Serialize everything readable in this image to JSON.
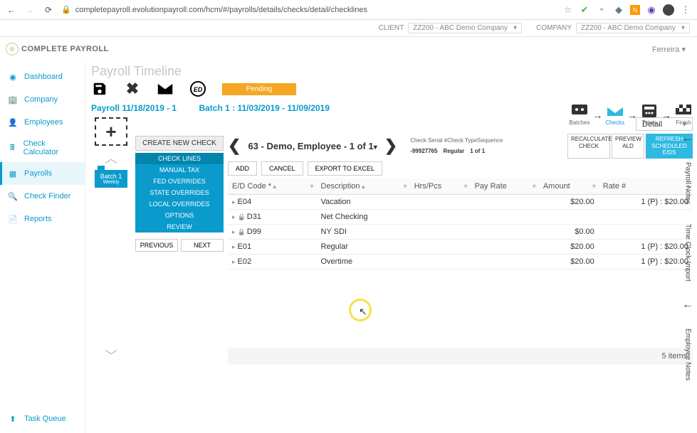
{
  "browser": {
    "url": "completepayroll.evolutionpayroll.com/hcm/#/payrolls/details/checks/detail/checklines",
    "ext_colors": [
      "#4caf50",
      "#9e9e9e",
      "#607d8b",
      "#ff9800",
      "#673ab7"
    ]
  },
  "client_bar": {
    "client_label": "CLIENT",
    "client_value": "ZZ200 - ABC Demo Company",
    "company_label": "COMPANY",
    "company_value": "ZZ200 - ABC Demo Company"
  },
  "logo_text": "COMPLETE PAYROLL",
  "user_name": "Ferreira",
  "sidebar": {
    "items": [
      {
        "label": "Dashboard",
        "icon": "gauge"
      },
      {
        "label": "Company",
        "icon": "building"
      },
      {
        "label": "Employees",
        "icon": "person"
      },
      {
        "label": "Check Calculator",
        "icon": "calc"
      },
      {
        "label": "Payrolls",
        "icon": "grid",
        "active": true
      },
      {
        "label": "Check Finder",
        "icon": "search"
      },
      {
        "label": "Reports",
        "icon": "doc"
      }
    ],
    "task_queue": "Task Queue"
  },
  "page": {
    "title": "Payroll Timeline",
    "pending": "Pending",
    "breadcrumb1": "Payroll 11/18/2019 - 1",
    "breadcrumb2": "Batch 1 : 11/03/2019 - 11/09/2019"
  },
  "workflow": [
    {
      "label": "Batches"
    },
    {
      "label": "Checks",
      "active": true
    },
    {
      "label": "Totals"
    },
    {
      "label": "Finish"
    }
  ],
  "batch": {
    "name": "Batch 1",
    "sub": "Weekly"
  },
  "check_nav": {
    "create": "CREATE NEW CHECK",
    "items": [
      "CHECK LINES",
      "MANUAL TAX",
      "FED OVERRIDES",
      "STATE OVERRIDES",
      "LOCAL OVERRIDES",
      "OPTIONS",
      "REVIEW"
    ],
    "active_index": 0,
    "prev": "PREVIOUS",
    "next": "NEXT"
  },
  "detail": {
    "view": "Detail",
    "employee": "63 - Demo, Employee  - 1 of 1",
    "serial_labels": "Check Serial #Check TypeSequence",
    "serial": "-99927765",
    "check_type": "Regular",
    "seq": "1 of 1",
    "recalculate": "RECALCULATE CHECK",
    "preview": "PREVIEW ALD",
    "refresh": "REFRESH SCHEDULED E/DS",
    "add": "ADD",
    "cancel": "CANCEL",
    "export": "EXPORT TO EXCEL",
    "columns": [
      "E/D Code *",
      "Description",
      "Hrs/Pcs",
      "Pay Rate",
      "Amount",
      "Rate #"
    ],
    "rows": [
      {
        "code": "E04",
        "locked": false,
        "desc": "Vacation",
        "hrs": "",
        "pay": "",
        "amount": "$20.00",
        "rate": "1 (P) : $20.00"
      },
      {
        "code": "D31",
        "locked": true,
        "desc": "Net Checking",
        "hrs": "",
        "pay": "",
        "amount": "",
        "rate": ""
      },
      {
        "code": "D99",
        "locked": true,
        "desc": "NY SDI",
        "hrs": "",
        "pay": "",
        "amount": "$0.00",
        "rate": ""
      },
      {
        "code": "E01",
        "locked": false,
        "desc": "Regular",
        "hrs": "",
        "pay": "",
        "amount": "$20.00",
        "rate": "1 (P) : $20.00"
      },
      {
        "code": "E02",
        "locked": false,
        "desc": "Overtime",
        "hrs": "",
        "pay": "",
        "amount": "$20.00",
        "rate": "1 (P) : $20.00"
      }
    ],
    "footer": "5 items"
  },
  "right_rail": [
    "Payroll Notes",
    "Time Clock Import",
    "Employee Notes"
  ]
}
